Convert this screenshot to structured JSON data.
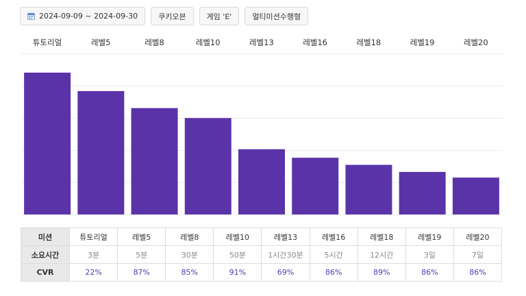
{
  "filters": {
    "date_range": "2024-09-09 ~ 2024-09-30",
    "event": "쿠키오븐",
    "game": "게임 'E'",
    "mission_type": "멀티미션수행형"
  },
  "colors": {
    "bar": "#5b33a9",
    "cvr_text": "#5b34b5",
    "grid": "#ececec"
  },
  "chart_data": {
    "type": "bar",
    "categories": [
      "튜토리얼",
      "레벨5",
      "레벨8",
      "레벨10",
      "레벨13",
      "레벨16",
      "레벨18",
      "레벨19",
      "레벨20"
    ],
    "values": [
      100,
      87,
      75,
      68,
      46,
      40,
      35,
      30,
      26
    ],
    "ylim": [
      0,
      100
    ],
    "grid": true
  },
  "table": {
    "row_headers": [
      "미션",
      "소요시간",
      "CVR"
    ],
    "missions": [
      "튜토리얼",
      "레벨5",
      "레벨8",
      "레벨10",
      "레벨13",
      "레벨16",
      "레벨18",
      "레벨19",
      "레벨20"
    ],
    "times": [
      "3분",
      "5분",
      "30분",
      "50분",
      "1시간30분",
      "5시간",
      "12시간",
      "3일",
      "7일"
    ],
    "cvr": [
      "22%",
      "87%",
      "85%",
      "91%",
      "69%",
      "86%",
      "89%",
      "86%",
      "86%"
    ]
  }
}
